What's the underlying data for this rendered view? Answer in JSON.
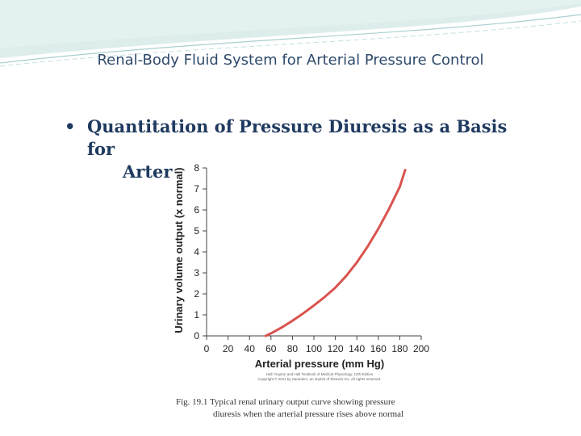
{
  "slide": {
    "title": "Renal-Body Fluid System for Arterial Pressure Control",
    "bullet_symbol": "•",
    "bullet_line1": "Quantitation of Pressure Diuresis as a Basis for",
    "bullet_line2": "Arterial Pressure Control",
    "caption_line1": "Fig. 19.1 Typical renal urinary output curve showing pressure",
    "caption_line2": "diuresis when the arterial pressure rises above normal",
    "credit_line1": "Hall: Guyton and Hall Textbook of Medical Physiology, 12th Edition",
    "credit_line2": "Copyright © 2011 by Saunders, an imprint of Elsevier Inc. All rights reserved."
  },
  "chart_data": {
    "type": "line",
    "title": "",
    "xlabel": "Arterial pressure (mm Hg)",
    "ylabel": "Urinary volume output (x normal)",
    "xlim": [
      0,
      200
    ],
    "ylim": [
      0,
      8
    ],
    "x_ticks": [
      0,
      20,
      40,
      60,
      80,
      100,
      120,
      140,
      160,
      180,
      200
    ],
    "y_ticks": [
      0,
      1,
      2,
      3,
      4,
      5,
      6,
      7,
      8
    ],
    "grid": false,
    "color": "#d9534f",
    "series": [
      {
        "x": [
          55,
          60,
          70,
          80,
          90,
          100,
          110,
          120,
          130,
          140,
          150,
          160,
          170,
          180,
          185
        ],
        "values": [
          0,
          0.12,
          0.4,
          0.72,
          1.07,
          1.45,
          1.85,
          2.3,
          2.85,
          3.5,
          4.25,
          5.1,
          6.05,
          7.1,
          7.9
        ]
      }
    ]
  }
}
